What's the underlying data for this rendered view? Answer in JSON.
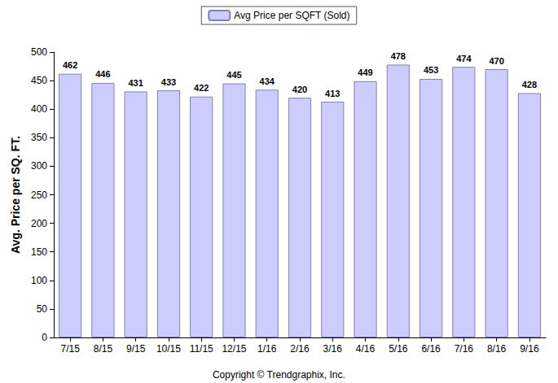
{
  "chart_data": {
    "type": "bar",
    "categories": [
      "7/15",
      "8/15",
      "9/15",
      "10/15",
      "11/15",
      "12/15",
      "1/16",
      "2/16",
      "3/16",
      "4/16",
      "5/16",
      "6/16",
      "7/16",
      "8/16",
      "9/16"
    ],
    "series": [
      {
        "name": "Avg Price per SQFT (Sold)",
        "color": "#ccccff",
        "values": [
          462,
          446,
          431,
          433,
          422,
          445,
          434,
          420,
          413,
          449,
          478,
          453,
          474,
          470,
          428
        ]
      }
    ],
    "y_label": "Avg. Price per SQ. FT.",
    "ylim": [
      0,
      500
    ],
    "yticks": [
      0,
      50,
      100,
      150,
      200,
      250,
      300,
      350,
      400,
      450,
      500
    ],
    "grid": false,
    "legend": "top",
    "data_labels": true,
    "annotations": [
      "Copyright © Trendgraphix, Inc."
    ]
  }
}
